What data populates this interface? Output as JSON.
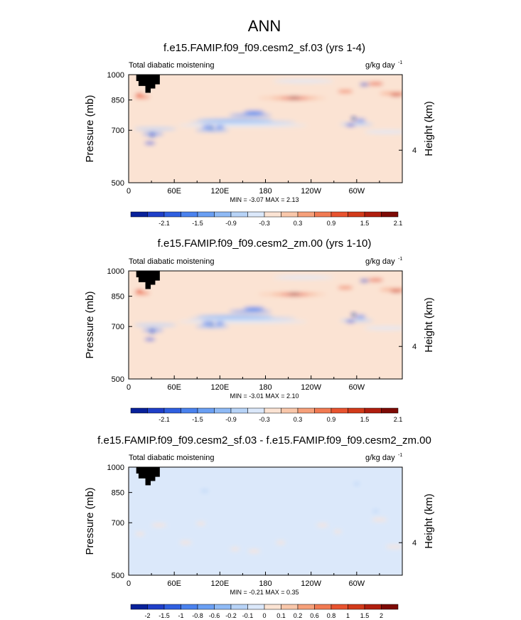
{
  "figure": {
    "title": "ANN"
  },
  "chart_data": [
    {
      "type": "heatmap",
      "title": "f.e15.FAMIP.f09_f09.cesm2_sf.03 (yrs 1-4)",
      "variable": "Total diabatic moistening",
      "units_text": "g/kg day",
      "units_exp": "-1",
      "ylabel": "Pressure (mb)",
      "ylabel_right": "Height (km)",
      "yticks": [
        "500",
        "700",
        "850",
        "1000"
      ],
      "yticks_right": [
        "4"
      ],
      "xticks": [
        "0",
        "60E",
        "120E",
        "180",
        "120W",
        "60W"
      ],
      "xlim": [
        0,
        360
      ],
      "ylim": [
        1000,
        500
      ],
      "stats": "MIN = -3.07   MAX =  2.13",
      "colorbar_labels": [
        "-2.1",
        "-1.5",
        "-0.9",
        "-0.3",
        "0.3",
        "0.9",
        "1.5",
        "2.1"
      ],
      "colorbar_colors": [
        "#08219a",
        "#1f3fc8",
        "#2f5fe0",
        "#4a82ee",
        "#6a9ff3",
        "#8fbaf5",
        "#b7d3f7",
        "#dbe8fa",
        "#fbe3d3",
        "#f9c7aa",
        "#f6a07a",
        "#f17a52",
        "#e8532f",
        "#d23a1a",
        "#b01e0e",
        "#7d0a05"
      ],
      "dry_features": [
        {
          "lon": 30,
          "p": 700,
          "value": -2.1
        },
        {
          "lon": 20,
          "p": 850,
          "value": 1.2
        },
        {
          "lon": 110,
          "p": 750,
          "value": -1.3
        },
        {
          "lon": 155,
          "p": 770,
          "value": -1.5
        },
        {
          "lon": 215,
          "p": 860,
          "value": 1.6
        },
        {
          "lon": 297,
          "p": 800,
          "value": -2.4
        },
        {
          "lon": 350,
          "p": 880,
          "value": 1.3
        }
      ]
    },
    {
      "type": "heatmap",
      "title": "f.e15.FAMIP.f09_f09.cesm2_zm.00 (yrs 1-10)",
      "variable": "Total diabatic moistening",
      "units_text": "g/kg day",
      "units_exp": "-1",
      "ylabel": "Pressure (mb)",
      "ylabel_right": "Height (km)",
      "yticks": [
        "500",
        "700",
        "850",
        "1000"
      ],
      "yticks_right": [
        "4"
      ],
      "xticks": [
        "0",
        "60E",
        "120E",
        "180",
        "120W",
        "60W"
      ],
      "xlim": [
        0,
        360
      ],
      "ylim": [
        1000,
        500
      ],
      "stats": "MIN = -3.01   MAX =  2.10",
      "colorbar_labels": [
        "-2.1",
        "-1.5",
        "-0.9",
        "-0.3",
        "0.3",
        "0.9",
        "1.5",
        "2.1"
      ],
      "colorbar_colors": [
        "#08219a",
        "#1f3fc8",
        "#2f5fe0",
        "#4a82ee",
        "#6a9ff3",
        "#8fbaf5",
        "#b7d3f7",
        "#dbe8fa",
        "#fbe3d3",
        "#f9c7aa",
        "#f6a07a",
        "#f17a52",
        "#e8532f",
        "#d23a1a",
        "#b01e0e",
        "#7d0a05"
      ]
    },
    {
      "type": "heatmap",
      "title": "f.e15.FAMIP.f09_f09.cesm2_sf.03 - f.e15.FAMIP.f09_f09.cesm2_zm.00",
      "variable": "Total diabatic moistening",
      "units_text": "g/kg day",
      "units_exp": "-1",
      "ylabel": "Pressure (mb)",
      "ylabel_right": "Height (km)",
      "yticks": [
        "500",
        "700",
        "850",
        "1000"
      ],
      "yticks_right": [
        "4"
      ],
      "xticks": [
        "0",
        "60E",
        "120E",
        "180",
        "120W",
        "60W"
      ],
      "xlim": [
        0,
        360
      ],
      "ylim": [
        1000,
        500
      ],
      "stats": "MIN = -0.21   MAX =  0.35",
      "colorbar_labels": [
        "-2",
        "-1.5",
        "-1",
        "-0.8",
        "-0.6",
        "-0.2",
        "-0.1",
        "0",
        "0.1",
        "0.2",
        "0.6",
        "0.8",
        "1",
        "1.5",
        "2"
      ],
      "colorbar_colors": [
        "#08219a",
        "#1f3fc8",
        "#2f5fe0",
        "#4a82ee",
        "#6a9ff3",
        "#8fbaf5",
        "#b7d3f7",
        "#dbe8fa",
        "#fbe3d3",
        "#f9c7aa",
        "#f6a07a",
        "#f17a52",
        "#e8532f",
        "#d23a1a",
        "#b01e0e",
        "#7d0a05"
      ]
    }
  ]
}
